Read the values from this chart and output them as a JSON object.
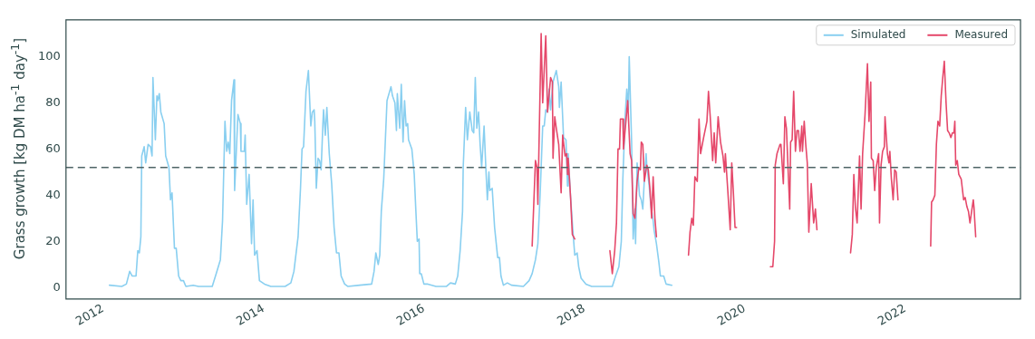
{
  "chart_data": {
    "type": "line",
    "ylabel": "Grass growth [kg DM ha$^{-1}$ day$^{-1}$]",
    "xlim": [
      "2011-07-16",
      "2023-06-10"
    ],
    "xticks": [
      "2012",
      "2014",
      "2016",
      "2018",
      "2020",
      "2022"
    ],
    "ylim": [
      -5,
      116
    ],
    "yticks": [
      0,
      20,
      40,
      60,
      80,
      100
    ],
    "grid": false,
    "legend": "top right",
    "marker": "none",
    "line_style": "solid",
    "ref_lines": [
      {
        "axis": "y",
        "value": 52,
        "color": "#4e6466",
        "line_style": "dashed"
      }
    ],
    "series": [
      {
        "name": "Simulated",
        "color": "#89cff0",
        "x": [
          "2012-01-30",
          "2012-03-26",
          "2012-04-16",
          "2012-05-01",
          "2012-05-12",
          "2012-05-30",
          "2012-06-07",
          "2012-06-14",
          "2012-06-21",
          "2012-06-25",
          "2012-07-06",
          "2012-07-13",
          "2012-07-24",
          "2012-08-04",
          "2012-08-11",
          "2012-08-15",
          "2012-08-26",
          "2012-09-02",
          "2012-09-06",
          "2012-09-13",
          "2012-09-20",
          "2012-10-05",
          "2012-10-12",
          "2012-10-27",
          "2012-11-03",
          "2012-11-10",
          "2012-11-21",
          "2012-11-29",
          "2012-12-10",
          "2012-12-20",
          "2013-01-01",
          "2013-01-12",
          "2013-02-14",
          "2013-03-11",
          "2013-05-12",
          "2013-05-30",
          "2013-06-18",
          "2013-06-28",
          "2013-07-09",
          "2013-07-17",
          "2013-07-24",
          "2013-07-31",
          "2013-08-08",
          "2013-08-19",
          "2013-08-22",
          "2013-09-06",
          "2013-09-17",
          "2013-09-20",
          "2013-10-05",
          "2013-10-09",
          "2013-10-16",
          "2013-10-27",
          "2013-11-07",
          "2013-11-14",
          "2013-11-21",
          "2013-12-02",
          "2013-12-13",
          "2014-01-05",
          "2014-02-03",
          "2014-04-09",
          "2014-05-05",
          "2014-05-19",
          "2014-06-07",
          "2014-06-18",
          "2014-06-25",
          "2014-07-02",
          "2014-07-13",
          "2014-07-24",
          "2014-08-04",
          "2014-08-11",
          "2014-08-19",
          "2014-08-22",
          "2014-08-29",
          "2014-09-06",
          "2014-09-13",
          "2014-09-20",
          "2014-09-28",
          "2014-10-01",
          "2014-10-09",
          "2014-10-16",
          "2014-10-27",
          "2014-11-07",
          "2014-11-18",
          "2014-11-29",
          "2014-12-10",
          "2014-12-20",
          "2015-01-05",
          "2015-01-19",
          "2015-03-15",
          "2015-05-08",
          "2015-05-19",
          "2015-05-27",
          "2015-06-07",
          "2015-06-14",
          "2015-06-21",
          "2015-07-02",
          "2015-07-17",
          "2015-08-04",
          "2015-08-11",
          "2015-08-22",
          "2015-08-29",
          "2015-09-02",
          "2015-09-13",
          "2015-09-20",
          "2015-09-28",
          "2015-10-05",
          "2015-10-12",
          "2015-10-19",
          "2015-10-23",
          "2015-11-07",
          "2015-11-18",
          "2015-11-25",
          "2015-12-02",
          "2015-12-10",
          "2015-12-13",
          "2015-12-20",
          "2016-01-01",
          "2016-01-19",
          "2016-02-25",
          "2016-04-13",
          "2016-05-01",
          "2016-05-23",
          "2016-06-03",
          "2016-06-14",
          "2016-06-25",
          "2016-06-28",
          "2016-07-09",
          "2016-07-17",
          "2016-07-28",
          "2016-08-08",
          "2016-08-15",
          "2016-08-22",
          "2016-08-29",
          "2016-09-06",
          "2016-09-13",
          "2016-09-20",
          "2016-10-01",
          "2016-10-09",
          "2016-10-16",
          "2016-10-23",
          "2016-10-27",
          "2016-11-07",
          "2016-11-18",
          "2016-12-02",
          "2016-12-10",
          "2016-12-17",
          "2016-12-28",
          "2017-01-15",
          "2017-02-03",
          "2017-03-29",
          "2017-04-24",
          "2017-05-08",
          "2017-05-23",
          "2017-06-03",
          "2017-06-14",
          "2017-06-25",
          "2017-07-02",
          "2017-07-09",
          "2017-07-17",
          "2017-07-24",
          "2017-07-31",
          "2017-08-11",
          "2017-08-26",
          "2017-09-06",
          "2017-09-09",
          "2017-09-17",
          "2017-09-28",
          "2017-10-09",
          "2017-10-16",
          "2017-10-19",
          "2017-10-30",
          "2017-11-10",
          "2017-11-18",
          "2017-11-29",
          "2017-12-06",
          "2017-12-17",
          "2018-01-08",
          "2018-02-03",
          "2018-05-08",
          "2018-05-23",
          "2018-06-07",
          "2018-06-18",
          "2018-06-25",
          "2018-07-06",
          "2018-07-13",
          "2018-07-20",
          "2018-07-24",
          "2018-08-04",
          "2018-08-11",
          "2018-08-19",
          "2018-08-22",
          "2018-08-29",
          "2018-09-09",
          "2018-09-17",
          "2018-09-24",
          "2018-10-01",
          "2018-10-09",
          "2018-10-12",
          "2018-10-23",
          "2018-10-30",
          "2018-11-10",
          "2018-11-14",
          "2018-11-25",
          "2018-12-06",
          "2018-12-13",
          "2018-12-28",
          "2019-01-08",
          "2019-02-03"
        ],
        "values": [
          1,
          0.5,
          1.5,
          7,
          5,
          5,
          16,
          15,
          22,
          57,
          61,
          54,
          62,
          61,
          57,
          91,
          64,
          83,
          81,
          84,
          76,
          71,
          57,
          52,
          38,
          41,
          17,
          17,
          5,
          3,
          3,
          0.5,
          1,
          0.5,
          0.5,
          6,
          12,
          29,
          72,
          59,
          63,
          58,
          81,
          90,
          42,
          75,
          71,
          59,
          59,
          66,
          36,
          49,
          19,
          38,
          14,
          16,
          3,
          1.5,
          0.5,
          0.5,
          2,
          7,
          22,
          43,
          60,
          61,
          85,
          94,
          70,
          76,
          77,
          72,
          43,
          56,
          55,
          51,
          71,
          77,
          66,
          78,
          58,
          45,
          26,
          15,
          15,
          5,
          1.5,
          0.5,
          1,
          1.5,
          7,
          15,
          10,
          14,
          33,
          47,
          81,
          87,
          83,
          80,
          68,
          84,
          69,
          88,
          63,
          81,
          70,
          71,
          64,
          60,
          49,
          34,
          20,
          21,
          6,
          6,
          1.5,
          1.5,
          0.5,
          0.5,
          2,
          1.5,
          5,
          16,
          33,
          52,
          78,
          64,
          76,
          68,
          67,
          91,
          69,
          76,
          62,
          52,
          70,
          52,
          38,
          50,
          42,
          43,
          26,
          13,
          13,
          5,
          1,
          2,
          1,
          0.5,
          3,
          6,
          12,
          19,
          42,
          70,
          70,
          77,
          76,
          86,
          77,
          89,
          94,
          87,
          78,
          89,
          65,
          64,
          44,
          58,
          39,
          24,
          14,
          15,
          9,
          4,
          1.5,
          0.5,
          0.5,
          5,
          9,
          20,
          47,
          75,
          86,
          77,
          100,
          63,
          21,
          34,
          19,
          54,
          40,
          38,
          34,
          47,
          58,
          53,
          44,
          36,
          29,
          25,
          19,
          11,
          5,
          5,
          1.5,
          1
        ]
      },
      {
        "name": "Measured",
        "color": "#e5486a",
        "x": [
          "2017-05-08",
          "2017-05-23",
          "2017-05-30",
          "2017-06-03",
          "2017-06-18",
          "2017-06-25",
          "2017-07-09",
          "2017-07-17",
          "2017-07-31",
          "2017-08-08",
          "2017-08-11",
          "2017-08-19",
          "2017-08-26",
          "2017-09-06",
          "2017-09-17",
          "2017-09-24",
          "2017-10-05",
          "2017-10-12",
          "2017-10-16",
          "2017-10-19",
          "2017-10-30",
          "2017-11-07",
          "2017-11-18",
          "2018-01-01",
          "2018-04-27",
          "2018-05-08",
          "2018-05-19",
          "2018-05-27",
          "2018-06-03",
          "2018-06-10",
          "2018-06-14",
          "2018-06-25",
          "2018-06-28",
          "2018-07-09",
          "2018-07-17",
          "2018-07-28",
          "2018-08-04",
          "2018-08-11",
          "2018-08-19",
          "2018-08-29",
          "2018-09-06",
          "2018-09-13",
          "2018-09-17",
          "2018-09-24",
          "2018-10-01",
          "2018-10-12",
          "2018-10-19",
          "2018-10-27",
          "2018-11-03",
          "2018-11-10",
          "2018-11-18",
          "2018-11-25",
          "2019-01-01",
          "2019-04-20",
          "2019-04-27",
          "2019-05-05",
          "2019-05-12",
          "2019-05-19",
          "2019-05-30",
          "2019-06-07",
          "2019-06-14",
          "2019-06-28",
          "2019-07-13",
          "2019-07-20",
          "2019-07-28",
          "2019-08-08",
          "2019-08-15",
          "2019-08-22",
          "2019-09-02",
          "2019-09-13",
          "2019-09-24",
          "2019-10-01",
          "2019-10-05",
          "2019-10-16",
          "2019-10-27",
          "2019-11-03",
          "2019-11-10",
          "2019-11-18",
          "2019-11-25",
          "2020-01-01",
          "2020-04-27",
          "2020-05-08",
          "2020-05-16",
          "2020-05-19",
          "2020-05-27",
          "2020-06-10",
          "2020-06-14",
          "2020-06-25",
          "2020-07-02",
          "2020-07-09",
          "2020-07-24",
          "2020-07-28",
          "2020-08-04",
          "2020-08-11",
          "2020-08-19",
          "2020-08-26",
          "2020-09-02",
          "2020-09-09",
          "2020-09-17",
          "2020-09-20",
          "2020-09-28",
          "2020-10-05",
          "2020-10-12",
          "2020-10-19",
          "2020-10-30",
          "2020-11-10",
          "2020-11-18",
          "2020-11-25",
          "2021-01-01",
          "2021-04-27",
          "2021-05-05",
          "2021-05-12",
          "2021-05-19",
          "2021-05-27",
          "2021-06-07",
          "2021-06-14",
          "2021-06-21",
          "2021-07-02",
          "2021-07-13",
          "2021-07-20",
          "2021-07-28",
          "2021-07-31",
          "2021-08-08",
          "2021-08-15",
          "2021-08-22",
          "2021-09-02",
          "2021-09-06",
          "2021-09-13",
          "2021-09-20",
          "2021-09-28",
          "2021-10-01",
          "2021-10-12",
          "2021-10-19",
          "2021-10-23",
          "2021-10-30",
          "2021-11-07",
          "2021-11-14",
          "2021-11-21",
          "2021-11-29",
          "2022-01-01",
          "2022-04-27",
          "2022-05-01",
          "2022-05-08",
          "2022-05-16",
          "2022-05-23",
          "2022-05-30",
          "2022-06-07",
          "2022-06-14",
          "2022-06-21",
          "2022-06-28",
          "2022-07-06",
          "2022-07-13",
          "2022-07-20",
          "2022-07-28",
          "2022-08-04",
          "2022-08-11",
          "2022-08-15",
          "2022-08-19",
          "2022-08-26",
          "2022-09-02",
          "2022-09-13",
          "2022-09-24",
          "2022-10-01",
          "2022-10-09",
          "2022-10-16",
          "2022-10-23",
          "2022-11-07",
          "2022-11-10",
          "2022-11-18"
        ],
        "values": [
          18,
          55,
          52,
          36,
          110,
          80,
          109,
          76,
          91,
          89,
          56,
          74,
          69,
          62,
          41,
          66,
          57,
          58,
          49,
          56,
          39,
          23,
          21,
          null,
          16,
          6,
          16,
          28,
          60,
          60,
          73,
          73,
          60,
          72,
          81,
          58,
          55,
          32,
          30,
          46,
          52,
          51,
          63,
          62,
          46,
          53,
          51,
          42,
          30,
          48,
          30,
          22,
          null,
          14,
          24,
          30,
          27,
          48,
          46,
          73,
          58,
          65,
          72,
          85,
          74,
          55,
          67,
          54,
          74,
          63,
          57,
          50,
          58,
          42,
          25,
          54,
          42,
          26,
          26,
          null,
          9,
          9,
          20,
          53,
          58,
          62,
          62,
          45,
          74,
          69,
          34,
          63,
          64,
          85,
          59,
          68,
          68,
          59,
          70,
          59,
          72,
          62,
          54,
          24,
          45,
          28,
          34,
          25,
          null,
          15,
          23,
          49,
          35,
          28,
          57,
          34,
          58,
          75,
          97,
          72,
          89,
          56,
          55,
          42,
          52,
          58,
          28,
          53,
          59,
          61,
          74,
          58,
          54,
          59,
          47,
          38,
          51,
          50,
          38,
          null,
          18,
          37,
          38,
          40,
          62,
          72,
          70,
          83,
          91,
          98,
          80,
          68,
          67,
          65,
          67,
          67,
          72,
          53,
          55,
          49,
          47,
          38,
          39,
          35,
          33,
          28,
          38,
          35,
          22
        ]
      }
    ]
  }
}
